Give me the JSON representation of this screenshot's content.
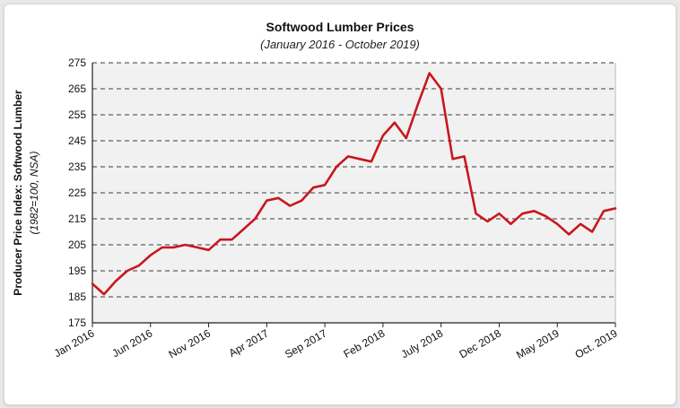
{
  "chart_data": {
    "type": "line",
    "title": "Softwood Lumber Prices",
    "subtitle": "(January 2016 - October 2019)",
    "ylabel": "Producer Price Index: Softwood Lumber",
    "ylabel_sub": "(1982=100, NSA)",
    "xlabel": "",
    "ylim": [
      175,
      275
    ],
    "yticks": [
      175,
      185,
      195,
      205,
      215,
      225,
      235,
      245,
      255,
      265,
      275
    ],
    "xtick_labels": [
      "Jan 2016",
      "Jun 2016",
      "Nov 2016",
      "Apr 2017",
      "Sep 2017",
      "Feb 2018",
      "July 2018",
      "Dec 2018",
      "May 2019",
      "Oct. 2019"
    ],
    "xlim": [
      0,
      45
    ],
    "grid": "horizontal dashed",
    "line_color": "#c8171e",
    "series": [
      {
        "x": [
          0,
          1,
          2,
          3,
          4,
          5,
          6,
          7,
          8,
          9,
          10,
          11,
          12,
          13,
          14,
          15,
          16,
          17,
          18,
          19,
          20,
          21,
          22,
          23,
          24,
          25,
          26,
          27,
          28,
          29,
          30,
          31,
          32,
          33,
          34,
          35,
          36,
          37,
          38,
          39,
          40,
          41,
          42,
          43,
          44,
          45
        ],
        "values": [
          190,
          186,
          191,
          195,
          197,
          201,
          204,
          204,
          205,
          204,
          203,
          207,
          207,
          211,
          215,
          222,
          223,
          220,
          222,
          227,
          228,
          235,
          239,
          238,
          237,
          247,
          252,
          246,
          259,
          271,
          265,
          238,
          239,
          217,
          214,
          217,
          213,
          217,
          218,
          216,
          213,
          209,
          213,
          210,
          218,
          219
        ]
      }
    ]
  }
}
